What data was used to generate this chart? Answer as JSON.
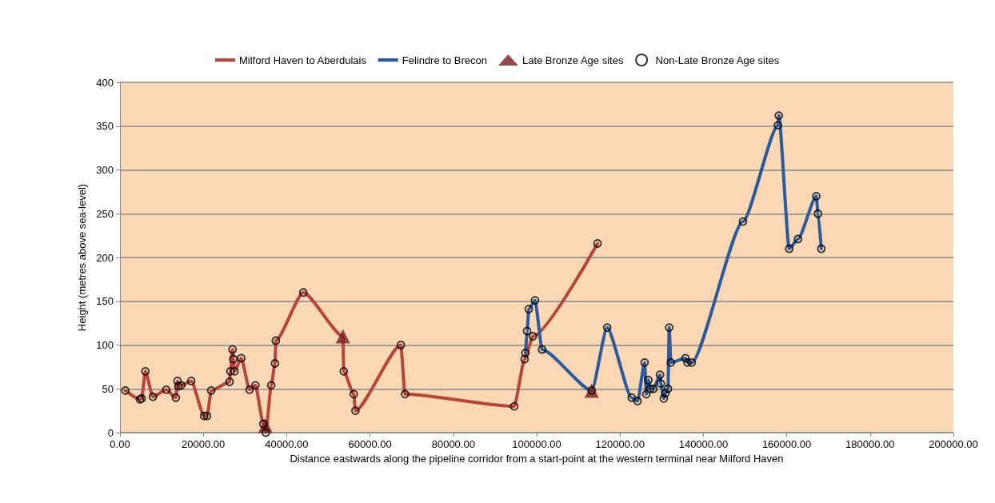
{
  "chart_data": {
    "type": "line",
    "xlabel": "Distance eastwards along the pipeline corridor from a start-point at the western terminal near Milford Haven",
    "ylabel": "Height (metres above sea-level)",
    "xlim": [
      0,
      200000
    ],
    "xticks": [
      {
        "value": 0,
        "label": "0.00"
      },
      {
        "value": 20000,
        "label": "20000.00"
      },
      {
        "value": 40000,
        "label": "40000.00"
      },
      {
        "value": 60000,
        "label": "60000.00"
      },
      {
        "value": 80000,
        "label": "80000.00"
      },
      {
        "value": 100000,
        "label": "100000.00"
      },
      {
        "value": 120000,
        "label": "120000.00"
      },
      {
        "value": 140000,
        "label": "140000.00"
      },
      {
        "value": 160000,
        "label": "160000.00"
      },
      {
        "value": 180000,
        "label": "180000.00"
      },
      {
        "value": 200000,
        "label": "200000.00"
      }
    ],
    "ylim": [
      0,
      400
    ],
    "yticks": [
      0,
      50,
      100,
      150,
      200,
      250,
      300,
      350,
      400
    ],
    "grid": "y",
    "legend": "top",
    "series": [
      {
        "name": "Milford Haven to Aberdulais",
        "marker": "none",
        "color": "#b5453d",
        "x": [
          1300,
          4800,
          5200,
          6100,
          7900,
          11100,
          13400,
          13800,
          14000,
          14700,
          17100,
          20200,
          20900,
          21900,
          26300,
          26500,
          27000,
          27200,
          27500,
          29100,
          31100,
          32500,
          34400,
          35000,
          36300,
          37200,
          37400,
          44000,
          53500,
          53700,
          56100,
          56500,
          67400,
          68400,
          94600,
          97100,
          99100,
          114600
        ],
        "values": [
          48,
          38,
          39,
          70,
          41,
          49,
          40,
          59,
          53,
          54,
          59,
          19,
          19,
          48,
          58,
          70,
          95,
          84,
          70,
          85,
          49,
          54,
          10,
          0,
          54,
          79,
          105,
          160,
          110,
          70,
          44,
          25,
          100,
          44,
          30,
          84,
          110,
          216
        ]
      },
      {
        "name": "Felindre to Brecon",
        "marker": "none",
        "color": "#2c5a9a",
        "x": [
          97300,
          97700,
          98100,
          99600,
          101300,
          113200,
          116900,
          122800,
          124200,
          125900,
          126300,
          126800,
          127200,
          128000,
          129600,
          129800,
          130500,
          130900,
          131500,
          131800,
          132200,
          135700,
          136200,
          137200,
          149500,
          157900,
          158100,
          160600,
          162700,
          167100,
          167500,
          168300
        ],
        "values": [
          91,
          116,
          141,
          151,
          95,
          48,
          120,
          40,
          36,
          80,
          44,
          60,
          50,
          50,
          66,
          56,
          39,
          45,
          50,
          120,
          80,
          85,
          80,
          80,
          241,
          351,
          362,
          210,
          221,
          270,
          250,
          210
        ]
      },
      {
        "name": "Late Bronze Age sites",
        "type": "scatter",
        "marker": "triangle",
        "color": "#7a1e1e",
        "x": [
          34900,
          53500,
          113200
        ],
        "values": [
          8,
          110,
          48
        ]
      },
      {
        "name": "Non-Late Bronze Age sites",
        "type": "scatter",
        "marker": "circle",
        "color": "#000000",
        "x": [
          1300,
          4800,
          5200,
          6100,
          7900,
          11100,
          13400,
          13800,
          14000,
          14700,
          17100,
          20200,
          20900,
          21900,
          26300,
          26500,
          27000,
          27200,
          27500,
          29100,
          31100,
          32500,
          34400,
          35000,
          36300,
          37200,
          37400,
          44000,
          53700,
          56100,
          56500,
          67400,
          68400,
          94600,
          97100,
          99100,
          114600,
          97300,
          97700,
          98100,
          99600,
          101300,
          113200,
          116900,
          122800,
          124200,
          125900,
          126300,
          126800,
          127200,
          128000,
          129600,
          129800,
          130500,
          130900,
          131500,
          131800,
          132200,
          135700,
          136200,
          137200,
          149500,
          157900,
          158100,
          160600,
          162700,
          167100,
          167500,
          168300
        ],
        "values": [
          48,
          38,
          39,
          70,
          41,
          49,
          40,
          59,
          53,
          54,
          59,
          19,
          19,
          48,
          58,
          70,
          95,
          84,
          70,
          85,
          49,
          54,
          10,
          0,
          54,
          79,
          105,
          160,
          70,
          44,
          25,
          100,
          44,
          30,
          84,
          110,
          216,
          91,
          116,
          141,
          151,
          95,
          48,
          120,
          40,
          36,
          80,
          44,
          60,
          50,
          50,
          66,
          56,
          39,
          45,
          50,
          120,
          80,
          85,
          80,
          80,
          241,
          351,
          362,
          210,
          221,
          270,
          250,
          210
        ]
      }
    ]
  }
}
